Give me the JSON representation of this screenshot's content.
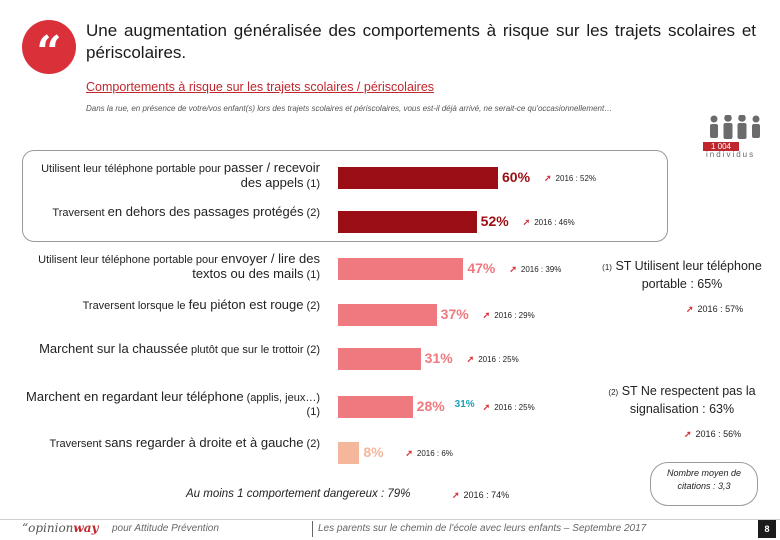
{
  "header": {
    "quote_icon": "quote-icon",
    "title": "Une augmentation généralisée des comportements à risque sur les trajets scolaires et périscolaires.",
    "subtitle": "Comportements à risque sur les trajets scolaires / périscolaires",
    "note": "Dans la rue, en présence de votre/vos enfant(s) lors des trajets scolaires et périscolaires, vous est-il déjà arrivé, ne serait-ce qu'occasionnellement…"
  },
  "sample": {
    "icon": "people-icon",
    "count": "1 004",
    "unit": "individus"
  },
  "chart_data": {
    "type": "bar",
    "orientation": "horizontal",
    "categories": [
      {
        "pre": "Utilisent leur téléphone portable pour ",
        "emph": "passer / recevoir des appels",
        "suffix": " (1)"
      },
      {
        "pre": "Traversent ",
        "emph": "en dehors des passages protégés",
        "suffix": " (2)"
      },
      {
        "pre": "Utilisent leur téléphone portable pour ",
        "emph": "envoyer / lire des textos ou des mails",
        "suffix": " (1)"
      },
      {
        "pre": "Traversent lorsque le ",
        "emph": "feu piéton est rouge",
        "suffix": " (2)"
      },
      {
        "pre": "",
        "emph": "Marchent sur la chaussée",
        "suffix": " plutôt que sur le trottoir (2)"
      },
      {
        "pre": "",
        "emph": "Marchent en regardant leur téléphone",
        "suffix": " (applis, jeux…) (1)"
      },
      {
        "pre": "Traversent ",
        "emph": "sans regarder à droite et à gauche",
        "suffix": " (2)"
      }
    ],
    "values": [
      60,
      52,
      47,
      37,
      31,
      28,
      8
    ],
    "value_labels": [
      "60%",
      "52%",
      "47%",
      "37%",
      "31%",
      "28%",
      "8%"
    ],
    "previous_labels": [
      "2016 : 52%",
      "2016 : 46%",
      "2016 : 39%",
      "2016 : 29%",
      "2016 : 25%",
      "2016 : 25%",
      "2016 : 6%"
    ],
    "extra_labels": [
      "",
      "",
      "",
      "",
      "",
      "31%",
      ""
    ],
    "colors": [
      "#9b0e15",
      "#9b0e15",
      "#ee7a80",
      "#ee7a80",
      "#ee7a80",
      "#ee7a80",
      "#f5b79c"
    ],
    "xlim": [
      0,
      60
    ]
  },
  "st_blocks": [
    {
      "ref": "(1)",
      "text": "ST Utilisent leur téléphone portable : 65%",
      "prev": "2016 : 57%"
    },
    {
      "ref": "(2)",
      "text": "ST Ne respectent pas la signalisation : 63%",
      "prev": "2016 : 56%"
    }
  ],
  "summary": {
    "text": "Au moins 1 comportement dangereux : 79%",
    "prev": "2016 : 74%"
  },
  "citations": {
    "text": "Nombre moyen de citations : 3,3"
  },
  "footer": {
    "logo_pre": "“opinion",
    "logo_post": "way",
    "left": "pour Attitude Prévention",
    "mid": "Les parents sur le chemin de l'école avec leurs enfants – Septembre 2017",
    "page": "8"
  },
  "colors": {
    "accent": "#d9303a",
    "dark_bar": "#9b0e15",
    "mid_bar": "#ee7a80",
    "light_bar": "#f5b79c",
    "extra_value": "#1aa3b5"
  }
}
